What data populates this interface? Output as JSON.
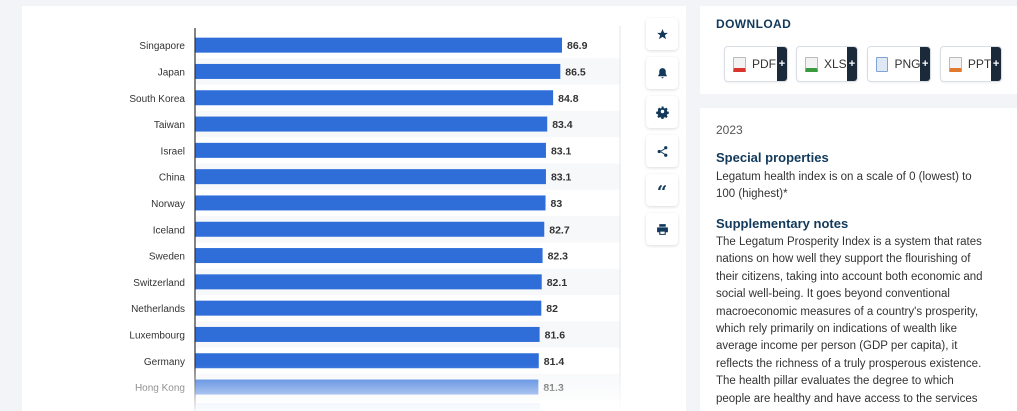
{
  "chart_data": {
    "type": "bar",
    "orientation": "horizontal",
    "categories": [
      "Singapore",
      "Japan",
      "South Korea",
      "Taiwan",
      "Israel",
      "China",
      "Norway",
      "Iceland",
      "Sweden",
      "Switzerland",
      "Netherlands",
      "Luxembourg",
      "Germany",
      "Hong Kong"
    ],
    "values": [
      86.9,
      86.5,
      84.8,
      83.4,
      83.1,
      83.1,
      83,
      82.7,
      82.3,
      82.1,
      82,
      81.6,
      81.4,
      81.3
    ],
    "value_labels": [
      "86.9",
      "86.5",
      "84.8",
      "83.4",
      "83.1",
      "83.1",
      "83",
      "82.7",
      "82.3",
      "82.1",
      "82",
      "81.6",
      "81.4",
      "81.3"
    ],
    "bar_color": "#2f6ed9",
    "grid": true
  },
  "tools": {
    "icons": [
      "star-icon",
      "bell-icon",
      "gear-icon",
      "share-icon",
      "quote-icon",
      "print-icon"
    ],
    "quote_glyph": "“"
  },
  "download": {
    "title": "DOWNLOAD",
    "buttons": [
      {
        "label": "PDF",
        "plus": "+",
        "color": "#d9352c"
      },
      {
        "label": "XLS",
        "plus": "+",
        "color": "#3a9b3e"
      },
      {
        "label": "PNG",
        "plus": "+",
        "color": "#3b78c6"
      },
      {
        "label": "PPT",
        "plus": "+",
        "color": "#e07a2e"
      }
    ]
  },
  "info": {
    "year": "2023",
    "special_heading": "Special properties",
    "special_lines": [
      "Legatum health index is on a scale of 0 (lowest) to",
      "100 (highest)*"
    ],
    "supp_heading": "Supplementary notes",
    "supp_lines": [
      "The Legatum Prosperity Index is a system that rates",
      "nations on how well they support the flourishing of",
      "their citizens, taking into account both economic and",
      "social well-being. It goes beyond conventional",
      "macroeconomic measures of a country's prosperity,",
      "which rely primarily on indications of wealth like",
      "average income per person (GDP per capita), it",
      "reflects the richness of a truly prosperous existence.",
      "The health pillar evaluates the degree to which",
      "people are healthy and have access to the services"
    ]
  }
}
